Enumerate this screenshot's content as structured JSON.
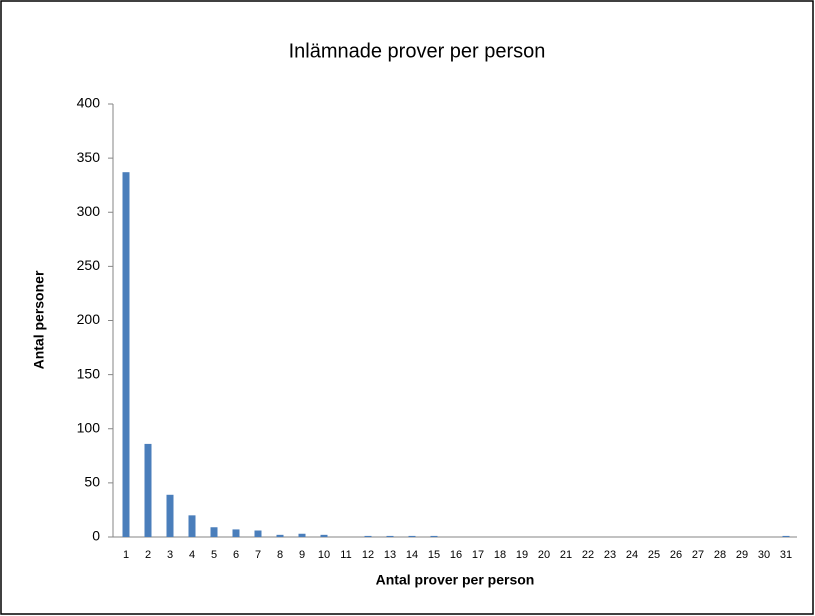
{
  "chart_data": {
    "type": "bar",
    "title": "Inlämnade prover per person",
    "x_label": "Antal prover per person",
    "y_label": "Antal personer",
    "categories": [
      "1",
      "2",
      "3",
      "4",
      "5",
      "6",
      "7",
      "8",
      "9",
      "10",
      "11",
      "12",
      "13",
      "14",
      "15",
      "16",
      "17",
      "18",
      "19",
      "20",
      "21",
      "22",
      "23",
      "24",
      "25",
      "26",
      "27",
      "28",
      "29",
      "30",
      "31"
    ],
    "values": [
      337,
      86,
      39,
      20,
      9,
      7,
      6,
      2,
      3,
      2,
      0,
      1,
      1,
      1,
      1,
      0,
      0,
      0,
      0,
      0,
      0,
      0,
      0,
      0,
      0,
      0,
      0,
      0,
      0,
      0,
      1
    ],
    "color": "#4a7ebb",
    "ylim": [
      0,
      400
    ],
    "yticks": [
      0,
      50,
      100,
      150,
      200,
      250,
      300,
      350,
      400
    ],
    "grid": false
  }
}
